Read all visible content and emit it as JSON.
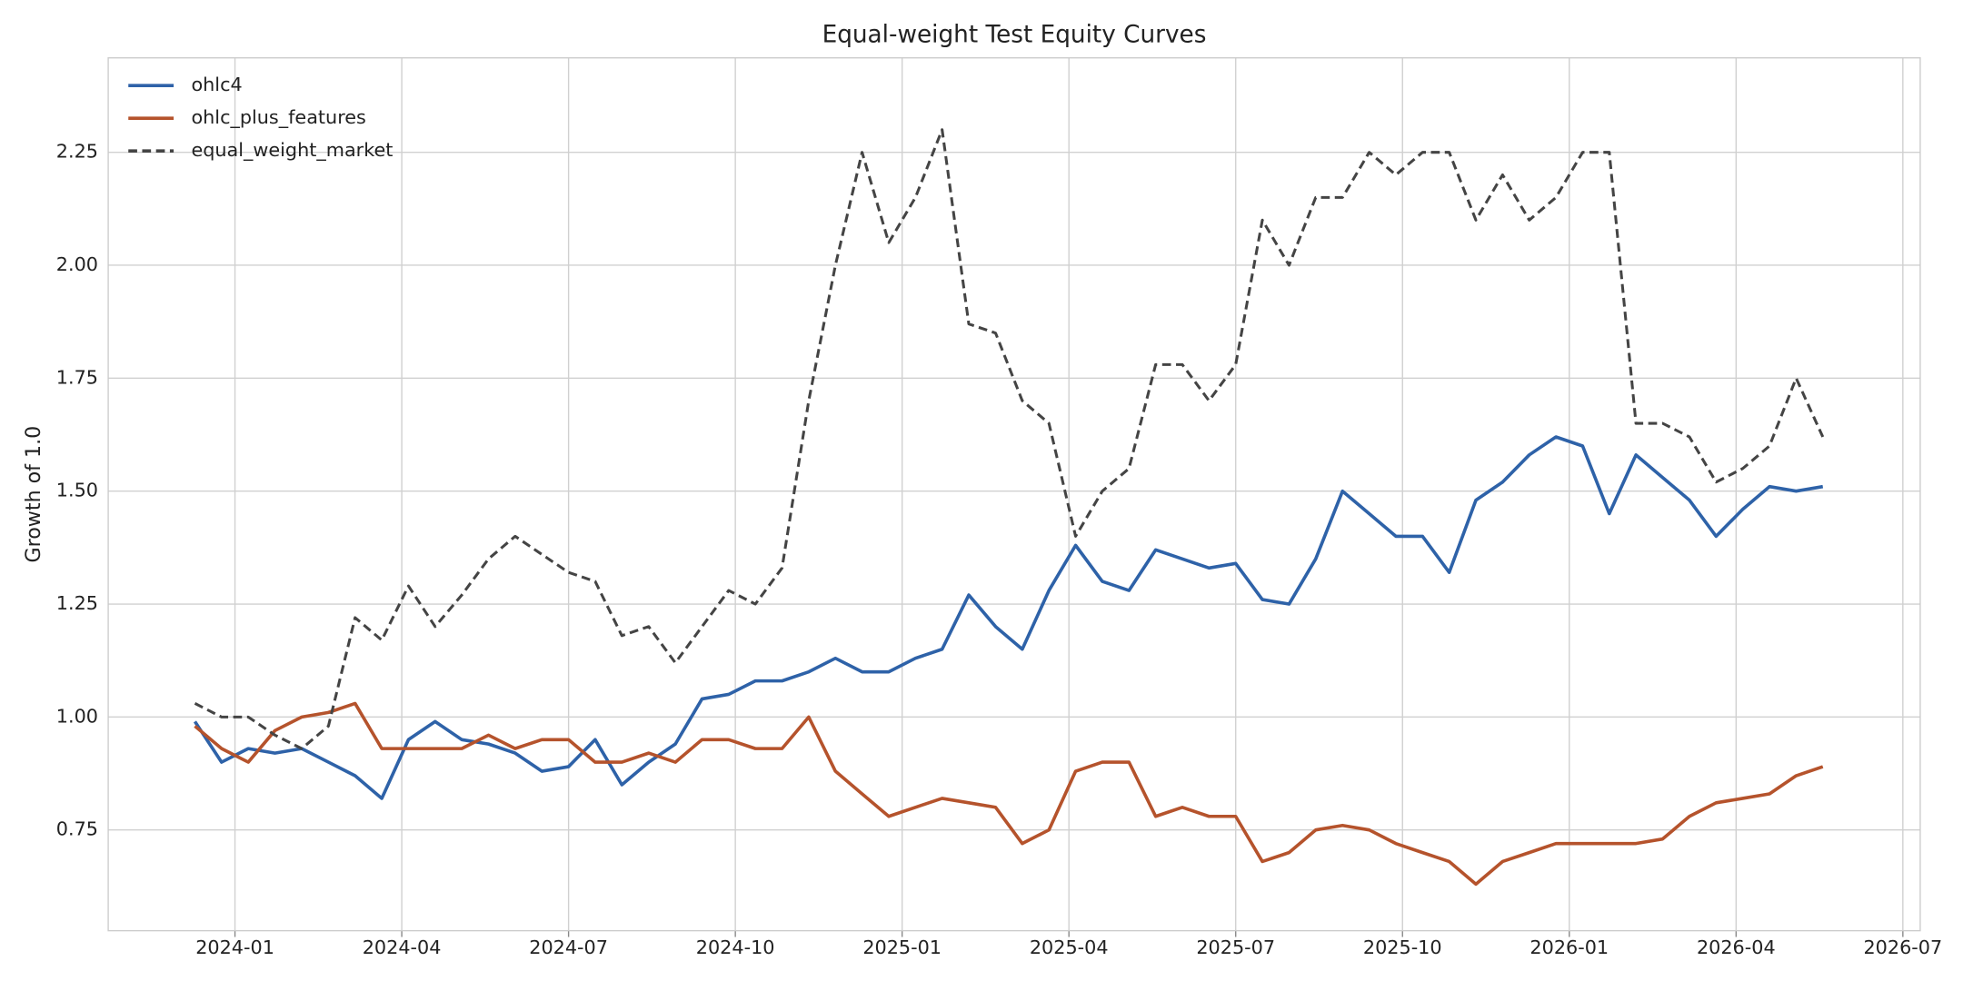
{
  "chart_data": {
    "type": "line",
    "title": "Equal-weight Test Equity Curves",
    "ylabel": "Growth of 1.0",
    "x": [
      2023.94,
      2023.98,
      2024.02,
      2024.06,
      2024.1,
      2024.14,
      2024.18,
      2024.22,
      2024.26,
      2024.3,
      2024.34,
      2024.38,
      2024.42,
      2024.46,
      2024.5,
      2024.54,
      2024.58,
      2024.62,
      2024.66,
      2024.7,
      2024.74,
      2024.78,
      2024.82,
      2024.86,
      2024.9,
      2024.94,
      2024.98,
      2025.02,
      2025.06,
      2025.1,
      2025.14,
      2025.18,
      2025.22,
      2025.26,
      2025.3,
      2025.34,
      2025.38,
      2025.42,
      2025.46,
      2025.5,
      2025.54,
      2025.58,
      2025.62,
      2025.66,
      2025.7,
      2025.74,
      2025.78,
      2025.82,
      2025.86,
      2025.9,
      2025.94,
      2025.98,
      2026.02,
      2026.06,
      2026.1,
      2026.14,
      2026.18,
      2026.22,
      2026.26,
      2026.3,
      2026.34,
      2026.38
    ],
    "series": [
      {
        "name": "ohlc4",
        "color": "#2e62a8",
        "linestyle": "solid",
        "values": [
          0.99,
          0.9,
          0.93,
          0.92,
          0.93,
          0.9,
          0.87,
          0.82,
          0.95,
          0.99,
          0.95,
          0.94,
          0.92,
          0.88,
          0.89,
          0.95,
          0.85,
          0.9,
          0.94,
          1.04,
          1.05,
          1.08,
          1.08,
          1.1,
          1.13,
          1.1,
          1.1,
          1.13,
          1.15,
          1.27,
          1.2,
          1.15,
          1.28,
          1.38,
          1.3,
          1.28,
          1.37,
          1.35,
          1.33,
          1.34,
          1.26,
          1.25,
          1.35,
          1.5,
          1.45,
          1.4,
          1.4,
          1.32,
          1.48,
          1.52,
          1.58,
          1.62,
          1.6,
          1.45,
          1.58,
          1.53,
          1.48,
          1.4,
          1.46,
          1.51,
          1.5,
          1.51
        ]
      },
      {
        "name": "ohlc_plus_features",
        "color": "#b5532c",
        "linestyle": "solid",
        "values": [
          0.98,
          0.93,
          0.9,
          0.97,
          1.0,
          1.01,
          1.03,
          0.93,
          0.93,
          0.93,
          0.93,
          0.96,
          0.93,
          0.95,
          0.95,
          0.9,
          0.9,
          0.92,
          0.9,
          0.95,
          0.95,
          0.93,
          0.93,
          1.0,
          0.88,
          0.83,
          0.78,
          0.8,
          0.82,
          0.81,
          0.8,
          0.72,
          0.75,
          0.88,
          0.9,
          0.9,
          0.78,
          0.8,
          0.78,
          0.78,
          0.68,
          0.7,
          0.75,
          0.76,
          0.75,
          0.72,
          0.7,
          0.68,
          0.63,
          0.68,
          0.7,
          0.72,
          0.72,
          0.72,
          0.72,
          0.73,
          0.78,
          0.81,
          0.82,
          0.83,
          0.87,
          0.89
        ]
      },
      {
        "name": "equal_weight_market",
        "color": "#444444",
        "linestyle": "dashed",
        "values": [
          1.03,
          1.0,
          1.0,
          0.96,
          0.93,
          0.98,
          1.22,
          1.17,
          1.29,
          1.2,
          1.27,
          1.35,
          1.4,
          1.36,
          1.32,
          1.3,
          1.18,
          1.2,
          1.12,
          1.2,
          1.28,
          1.25,
          1.33,
          1.7,
          2.0,
          2.25,
          2.05,
          2.15,
          2.3,
          1.87,
          1.85,
          1.7,
          1.65,
          1.4,
          1.5,
          1.55,
          1.78,
          1.78,
          1.7,
          1.78,
          2.1,
          2.0,
          2.15,
          2.15,
          2.25,
          2.2,
          2.25,
          2.25,
          2.1,
          2.2,
          2.1,
          2.15,
          2.25,
          2.25,
          1.65,
          1.65,
          1.62,
          1.52,
          1.55,
          1.6,
          1.75,
          1.62
        ]
      }
    ],
    "xlim": [
      2023.81,
      2026.526
    ],
    "xticks": [
      {
        "value": 2024.0,
        "label": "2024-01"
      },
      {
        "value": 2024.25,
        "label": "2024-04"
      },
      {
        "value": 2024.5,
        "label": "2024-07"
      },
      {
        "value": 2024.75,
        "label": "2024-10"
      },
      {
        "value": 2025.0,
        "label": "2025-01"
      },
      {
        "value": 2025.25,
        "label": "2025-04"
      },
      {
        "value": 2025.5,
        "label": "2025-07"
      },
      {
        "value": 2025.75,
        "label": "2025-10"
      },
      {
        "value": 2026.0,
        "label": "2026-01"
      },
      {
        "value": 2026.25,
        "label": "2026-04"
      },
      {
        "value": 2026.5,
        "label": "2026-07"
      }
    ],
    "ylim": [
      0.527,
      2.459
    ],
    "yticks": [
      0.75,
      {
        "value": 1,
        "label": "1.00"
      },
      1.25,
      {
        "value": 1.5,
        "label": "1.50"
      },
      1.75,
      {
        "value": 2,
        "label": "2.00"
      },
      2.25
    ],
    "grid": true,
    "legend": "upper left"
  }
}
